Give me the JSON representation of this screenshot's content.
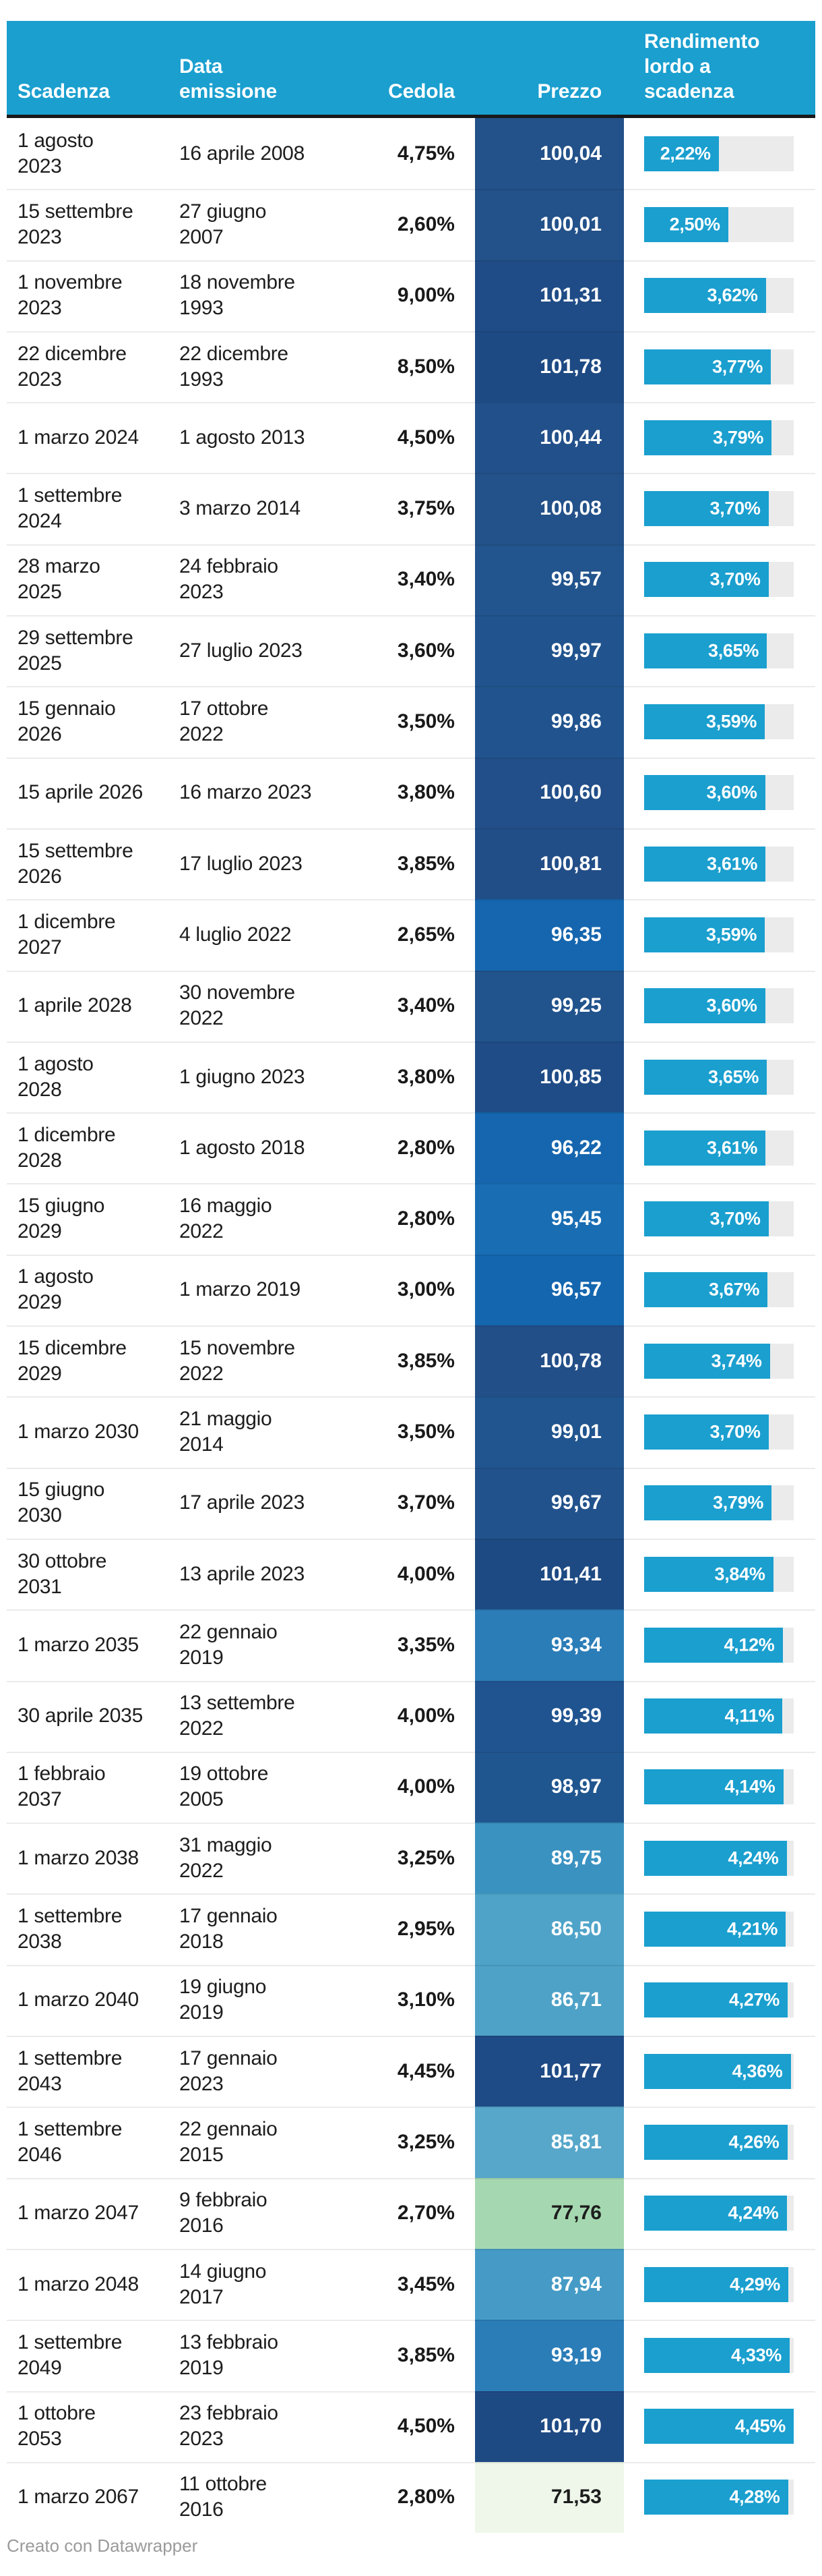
{
  "header": {
    "col_scadenza": "Scadenza",
    "col_emissione": "Data\nemissione",
    "col_cedola": "Cedola",
    "col_prezzo": "Prezzo",
    "col_rendimento": "Rendimento\nlordo a\nscadenza"
  },
  "footer": {
    "credit": "Creato con Datawrapper"
  },
  "colors": {
    "header_bg": "#1A9FCF",
    "header_text": "#FFFFFF",
    "header_rule": "#191919",
    "body_text": "#1D1D1D",
    "separator": "rgba(0,0,0,0.08)",
    "bar_fill": "#1A9FCF",
    "bar_track": "#EBEBEB",
    "bar_label_text": "#FFFFFF",
    "credit_text": "#9B9B9B"
  },
  "chart_data": {
    "type": "table",
    "columns": [
      "Scadenza",
      "Data emissione",
      "Cedola",
      "Prezzo",
      "Rendimento lordo a scadenza"
    ],
    "bar_axis_max": 4.45,
    "rows": [
      {
        "scadenza": "1 agosto\n2023",
        "emissione": "16 aprile 2008",
        "cedola": "4,75%",
        "prezzo": "100,04",
        "prezzo_bg": "#235189",
        "rendimento": "2,22%"
      },
      {
        "scadenza": "15 settembre\n2023",
        "emissione": "27 giugno\n2007",
        "cedola": "2,60%",
        "prezzo": "100,01",
        "prezzo_bg": "#235189",
        "rendimento": "2,50%"
      },
      {
        "scadenza": "1 novembre\n2023",
        "emissione": "18 novembre\n1993",
        "cedola": "9,00%",
        "prezzo": "101,31",
        "prezzo_bg": "#1F4C86",
        "rendimento": "3,62%"
      },
      {
        "scadenza": "22 dicembre\n2023",
        "emissione": "22 dicembre\n1993",
        "cedola": "8,50%",
        "prezzo": "101,78",
        "prezzo_bg": "#1E4A84",
        "rendimento": "3,77%"
      },
      {
        "scadenza": "1 marzo 2024",
        "emissione": "1 agosto 2013",
        "cedola": "4,50%",
        "prezzo": "100,44",
        "prezzo_bg": "#22508A",
        "rendimento": "3,79%"
      },
      {
        "scadenza": "1 settembre\n2024",
        "emissione": "3 marzo 2014",
        "cedola": "3,75%",
        "prezzo": "100,08",
        "prezzo_bg": "#235189",
        "rendimento": "3,70%"
      },
      {
        "scadenza": "28 marzo\n2025",
        "emissione": "24 febbraio\n2023",
        "cedola": "3,40%",
        "prezzo": "99,57",
        "prezzo_bg": "#22548D",
        "rendimento": "3,70%"
      },
      {
        "scadenza": "29 settembre\n2025",
        "emissione": "27 luglio 2023",
        "cedola": "3,60%",
        "prezzo": "99,97",
        "prezzo_bg": "#21548E",
        "rendimento": "3,65%"
      },
      {
        "scadenza": "15 gennaio\n2026",
        "emissione": "17 ottobre\n2022",
        "cedola": "3,50%",
        "prezzo": "99,86",
        "prezzo_bg": "#21548E",
        "rendimento": "3,59%"
      },
      {
        "scadenza": "15 aprile 2026",
        "emissione": "16 marzo 2023",
        "cedola": "3,80%",
        "prezzo": "100,60",
        "prezzo_bg": "#224F89",
        "rendimento": "3,60%"
      },
      {
        "scadenza": "15 settembre\n2026",
        "emissione": "17 luglio 2023",
        "cedola": "3,85%",
        "prezzo": "100,81",
        "prezzo_bg": "#224E88",
        "rendimento": "3,61%"
      },
      {
        "scadenza": "1 dicembre\n2027",
        "emissione": "4 luglio 2022",
        "cedola": "2,65%",
        "prezzo": "96,35",
        "prezzo_bg": "#1566AE",
        "rendimento": "3,59%"
      },
      {
        "scadenza": "1 aprile 2028",
        "emissione": "30 novembre\n2022",
        "cedola": "3,40%",
        "prezzo": "99,25",
        "prezzo_bg": "#21538C",
        "rendimento": "3,60%"
      },
      {
        "scadenza": "1 agosto\n2028",
        "emissione": "1 giugno 2023",
        "cedola": "3,80%",
        "prezzo": "100,85",
        "prezzo_bg": "#1F4C87",
        "rendimento": "3,65%"
      },
      {
        "scadenza": "1 dicembre\n2028",
        "emissione": "1 agosto 2018",
        "cedola": "2,80%",
        "prezzo": "96,22",
        "prezzo_bg": "#1566AE",
        "rendimento": "3,61%"
      },
      {
        "scadenza": "15 giugno\n2029",
        "emissione": "16 maggio\n2022",
        "cedola": "2,80%",
        "prezzo": "95,45",
        "prezzo_bg": "#186DB3",
        "rendimento": "3,70%"
      },
      {
        "scadenza": "1 agosto\n2029",
        "emissione": "1 marzo 2019",
        "cedola": "3,00%",
        "prezzo": "96,57",
        "prezzo_bg": "#1466AF",
        "rendimento": "3,67%"
      },
      {
        "scadenza": "15 dicembre\n2029",
        "emissione": "15 novembre\n2022",
        "cedola": "3,85%",
        "prezzo": "100,78",
        "prezzo_bg": "#234F88",
        "rendimento": "3,74%"
      },
      {
        "scadenza": "1 marzo 2030",
        "emissione": "21 maggio\n2014",
        "cedola": "3,50%",
        "prezzo": "99,01",
        "prezzo_bg": "#20558F",
        "rendimento": "3,70%"
      },
      {
        "scadenza": "15 giugno\n2030",
        "emissione": "17 aprile 2023",
        "cedola": "3,70%",
        "prezzo": "99,67",
        "prezzo_bg": "#22528B",
        "rendimento": "3,79%"
      },
      {
        "scadenza": "30 ottobre\n2031",
        "emissione": "13 aprile 2023",
        "cedola": "4,00%",
        "prezzo": "101,41",
        "prezzo_bg": "#1D4A83",
        "rendimento": "3,84%"
      },
      {
        "scadenza": "1 marzo 2035",
        "emissione": "22 gennaio\n2019",
        "cedola": "3,35%",
        "prezzo": "93,34",
        "prezzo_bg": "#2B7DB8",
        "rendimento": "4,12%"
      },
      {
        "scadenza": "30 aprile 2035",
        "emissione": "13 settembre\n2022",
        "cedola": "4,00%",
        "prezzo": "99,39",
        "prezzo_bg": "#205490",
        "rendimento": "4,11%"
      },
      {
        "scadenza": "1 febbraio\n2037",
        "emissione": "19 ottobre\n2005",
        "cedola": "4,00%",
        "prezzo": "98,97",
        "prezzo_bg": "#20568F",
        "rendimento": "4,14%"
      },
      {
        "scadenza": "1 marzo 2038",
        "emissione": "31 maggio\n2022",
        "cedola": "3,25%",
        "prezzo": "89,75",
        "prezzo_bg": "#3A92C1",
        "rendimento": "4,24%"
      },
      {
        "scadenza": "1 settembre\n2038",
        "emissione": "17 gennaio\n2018",
        "cedola": "2,95%",
        "prezzo": "86,50",
        "prezzo_bg": "#4FA3C8",
        "rendimento": "4,21%"
      },
      {
        "scadenza": "1 marzo 2040",
        "emissione": "19 giugno\n2019",
        "cedola": "3,10%",
        "prezzo": "86,71",
        "prezzo_bg": "#4EA2C7",
        "rendimento": "4,27%"
      },
      {
        "scadenza": "1 settembre\n2043",
        "emissione": "17 gennaio\n2023",
        "cedola": "4,45%",
        "prezzo": "101,77",
        "prezzo_bg": "#1E4A85",
        "rendimento": "4,36%"
      },
      {
        "scadenza": "1 settembre\n2046",
        "emissione": "22 gennaio\n2015",
        "cedola": "3,25%",
        "prezzo": "85,81",
        "prezzo_bg": "#57A7CA",
        "rendimento": "4,26%"
      },
      {
        "scadenza": "1 marzo 2047",
        "emissione": "9 febbraio\n2016",
        "cedola": "2,70%",
        "prezzo": "77,76",
        "prezzo_bg": "#A5D8B0",
        "rendimento": "4,24%"
      },
      {
        "scadenza": "1 marzo 2048",
        "emissione": "14 giugno\n2017",
        "cedola": "3,45%",
        "prezzo": "87,94",
        "prezzo_bg": "#459BC5",
        "rendimento": "4,29%"
      },
      {
        "scadenza": "1 settembre\n2049",
        "emissione": "13 febbraio\n2019",
        "cedola": "3,85%",
        "prezzo": "93,19",
        "prezzo_bg": "#2B7DB8",
        "rendimento": "4,33%"
      },
      {
        "scadenza": "1 ottobre\n2053",
        "emissione": "23 febbraio\n2023",
        "cedola": "4,50%",
        "prezzo": "101,70",
        "prezzo_bg": "#1E4A84",
        "rendimento": "4,45%"
      },
      {
        "scadenza": "1 marzo 2067",
        "emissione": "11 ottobre\n2016",
        "cedola": "2,80%",
        "prezzo": "71,53",
        "prezzo_bg": "#EEF7EA",
        "rendimento": "4,28%"
      }
    ]
  }
}
